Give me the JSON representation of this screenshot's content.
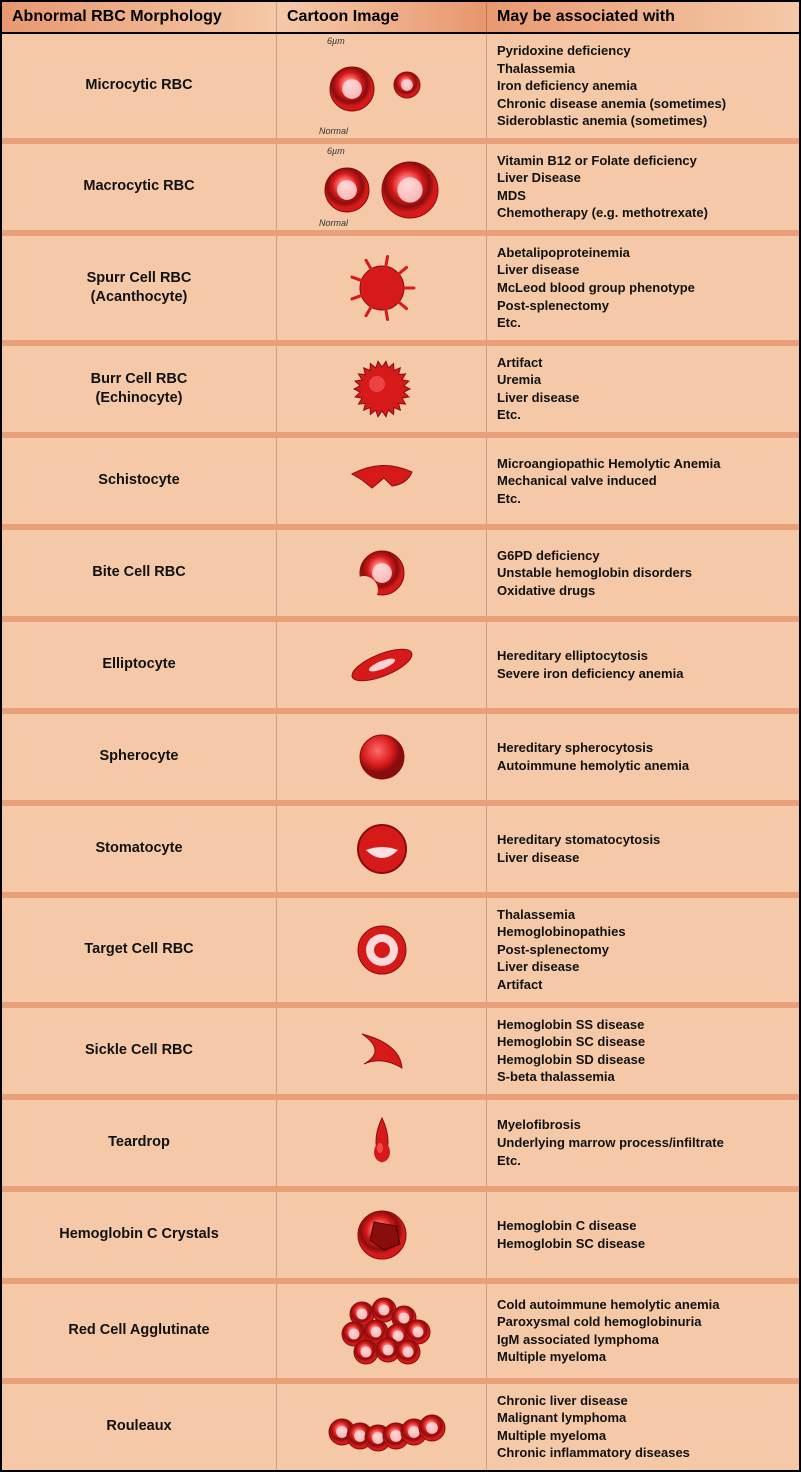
{
  "colors": {
    "row_bg": "#f5c9a8",
    "row_divider": "#e8a079",
    "rbc_red": "#d61a1a",
    "rbc_dark": "#8a0d0d",
    "rbc_light": "#ff6b6b",
    "text": "#111111"
  },
  "layout": {
    "col1_width": 275,
    "col2_width": 210,
    "header_fontsize": 16,
    "morph_fontsize": 14.5,
    "assoc_fontsize": 13
  },
  "headers": {
    "morphology": "Abnormal RBC Morphology",
    "image": "Cartoon Image",
    "associated": "May be associated with"
  },
  "rows": [
    {
      "name": "Microcytic RBC",
      "image_type": "microcytic",
      "size_label_top": "6µm",
      "size_label_bottom": "Normal",
      "associated": [
        "Pyridoxine deficiency",
        "Thalassemia",
        "Iron deficiency anemia",
        "Chronic disease anemia (sometimes)",
        "Sideroblastic anemia (sometimes)"
      ]
    },
    {
      "name": "Macrocytic RBC",
      "image_type": "macrocytic",
      "size_label_top": "6µm",
      "size_label_bottom": "Normal",
      "associated": [
        "Vitamin B12 or Folate deficiency",
        "Liver Disease",
        "MDS",
        "Chemotherapy (e.g. methotrexate)"
      ]
    },
    {
      "name": "Spurr Cell RBC\n(Acanthocyte)",
      "image_type": "acanthocyte",
      "associated": [
        "Abetalipoproteinemia",
        "Liver disease",
        "McLeod  blood group phenotype",
        "Post-splenectomy",
        "Etc."
      ]
    },
    {
      "name": "Burr Cell RBC\n(Echinocyte)",
      "image_type": "echinocyte",
      "associated": [
        "Artifact",
        "Uremia",
        "Liver disease",
        "Etc."
      ]
    },
    {
      "name": "Schistocyte",
      "image_type": "schistocyte",
      "associated": [
        "Microangiopathic Hemolytic Anemia",
        "Mechanical valve induced",
        "Etc."
      ]
    },
    {
      "name": "Bite Cell RBC",
      "image_type": "bitecell",
      "associated": [
        "G6PD deficiency",
        "Unstable hemoglobin disorders",
        "Oxidative drugs"
      ]
    },
    {
      "name": "Elliptocyte",
      "image_type": "elliptocyte",
      "associated": [
        "Hereditary elliptocytosis",
        "Severe iron deficiency anemia"
      ]
    },
    {
      "name": "Spherocyte",
      "image_type": "spherocyte",
      "associated": [
        "Hereditary spherocytosis",
        "Autoimmune hemolytic anemia"
      ]
    },
    {
      "name": "Stomatocyte",
      "image_type": "stomatocyte",
      "associated": [
        "Hereditary stomatocytosis",
        "Liver disease"
      ]
    },
    {
      "name": "Target Cell RBC",
      "image_type": "targetcell",
      "associated": [
        "Thalassemia",
        "Hemoglobinopathies",
        "Post-splenectomy",
        "Liver disease",
        "Artifact"
      ]
    },
    {
      "name": "Sickle Cell RBC",
      "image_type": "sicklecell",
      "associated": [
        "Hemoglobin SS disease",
        "Hemoglobin SC disease",
        "Hemoglobin SD disease",
        "S-beta thalassemia"
      ]
    },
    {
      "name": "Teardrop",
      "image_type": "teardrop",
      "associated": [
        "Myelofibrosis",
        "Underlying marrow process/infiltrate",
        "Etc."
      ]
    },
    {
      "name": "Hemoglobin C Crystals",
      "image_type": "hgbc",
      "associated": [
        "Hemoglobin C disease",
        "Hemoglobin SC disease"
      ]
    },
    {
      "name": "Red Cell Agglutinate",
      "image_type": "agglutinate",
      "associated": [
        "Cold autoimmune hemolytic anemia",
        "Paroxysmal cold hemoglobinuria",
        "IgM associated lymphoma",
        "Multiple myeloma"
      ]
    },
    {
      "name": "Rouleaux",
      "image_type": "rouleaux",
      "associated": [
        "Chronic liver disease",
        "Malignant lymphoma",
        "Multiple myeloma",
        "Chronic inflammatory diseases"
      ]
    }
  ]
}
